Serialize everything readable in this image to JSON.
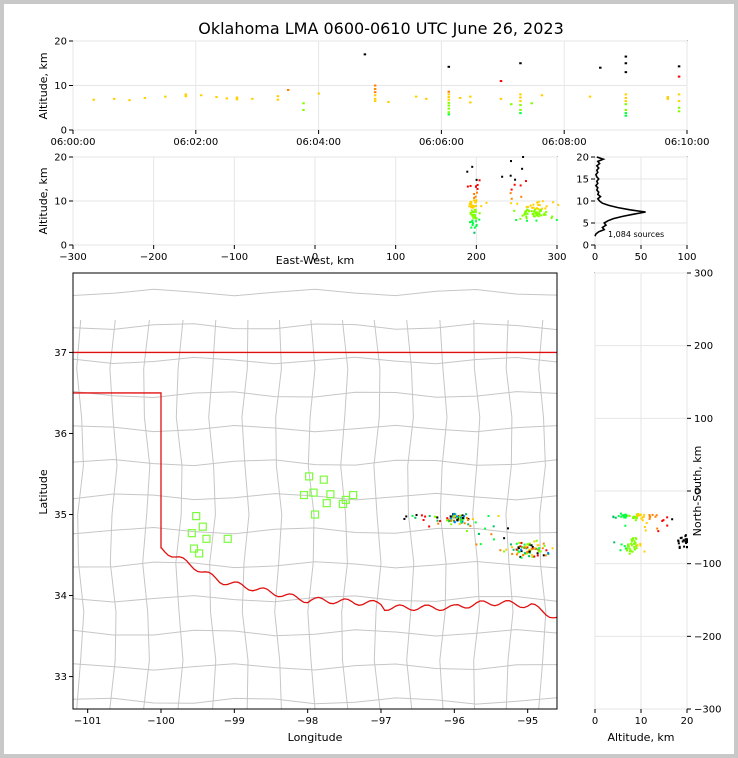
{
  "chart_data": {
    "type": "scatter",
    "title": "Oklahoma LMA 0600-0610 UTC June 26, 2023",
    "panels": {
      "time_altitude": {
        "ylabel": "Altitude, km",
        "ylim": [
          0,
          20
        ],
        "yticks": [
          "0",
          "10",
          "20"
        ],
        "xticks": [
          "06:00:00",
          "06:02:00",
          "06:04:00",
          "06:06:00",
          "06:08:00",
          "06:10:00"
        ],
        "xlim_seconds": [
          0,
          600
        ],
        "columns": [
          {
            "t": 20,
            "alts": [
              6.8
            ]
          },
          {
            "t": 40,
            "alts": [
              7.0
            ]
          },
          {
            "t": 55,
            "alts": [
              6.7
            ]
          },
          {
            "t": 70,
            "alts": [
              7.2
            ]
          },
          {
            "t": 90,
            "alts": [
              7.5
            ]
          },
          {
            "t": 110,
            "alts": [
              8.0,
              7.6
            ]
          },
          {
            "t": 125,
            "alts": [
              7.8
            ]
          },
          {
            "t": 140,
            "alts": [
              7.4
            ]
          },
          {
            "t": 150,
            "alts": [
              7.1
            ]
          },
          {
            "t": 160,
            "alts": [
              7.3,
              6.9
            ]
          },
          {
            "t": 175,
            "alts": [
              7.0
            ]
          },
          {
            "t": 200,
            "alts": [
              7.6,
              6.8
            ]
          },
          {
            "t": 210,
            "alts": [
              9.0
            ]
          },
          {
            "t": 225,
            "alts": [
              6.0,
              4.5
            ]
          },
          {
            "t": 240,
            "alts": [
              8.2
            ]
          },
          {
            "t": 285,
            "alts": [
              17.0
            ]
          },
          {
            "t": 295,
            "alts": [
              10.0,
              9.2,
              8.5,
              7.8,
              7.0,
              6.5
            ]
          },
          {
            "t": 308,
            "alts": [
              6.3
            ]
          },
          {
            "t": 335,
            "alts": [
              7.5
            ]
          },
          {
            "t": 345,
            "alts": [
              7.0
            ]
          },
          {
            "t": 367,
            "alts": [
              14.2,
              8.6,
              8.0,
              7.4,
              6.8,
              6.1,
              5.5,
              4.8,
              4.0,
              3.5
            ]
          },
          {
            "t": 378,
            "alts": [
              7.2
            ]
          },
          {
            "t": 388,
            "alts": [
              7.5,
              6.2
            ]
          },
          {
            "t": 418,
            "alts": [
              11.0,
              7.0
            ]
          },
          {
            "t": 428,
            "alts": [
              5.8
            ]
          },
          {
            "t": 437,
            "alts": [
              15.0,
              8.0,
              7.3,
              6.5,
              5.6,
              4.5,
              3.8
            ]
          },
          {
            "t": 448,
            "alts": [
              6.0
            ]
          },
          {
            "t": 458,
            "alts": [
              7.8
            ]
          },
          {
            "t": 505,
            "alts": [
              7.5
            ]
          },
          {
            "t": 515,
            "alts": [
              14.0
            ]
          },
          {
            "t": 540,
            "alts": [
              16.5,
              15.0,
              13.0,
              8.0,
              7.2,
              6.5,
              5.8,
              4.5,
              3.8,
              3.2
            ]
          },
          {
            "t": 581,
            "alts": [
              7.4,
              7.0
            ]
          },
          {
            "t": 592,
            "alts": [
              14.3,
              12.0,
              8.0,
              6.5,
              5.0,
              4.2
            ]
          }
        ]
      },
      "ew_altitude": {
        "xlabel": "East-West, km",
        "ylabel": "Altitude, km",
        "xlim": [
          -300,
          300
        ],
        "ylim": [
          0,
          20
        ],
        "xticks": [
          "−300",
          "−200",
          "−100",
          "0",
          "100",
          "200",
          "300"
        ],
        "yticks": [
          "0",
          "10",
          "20"
        ],
        "clusters": [
          {
            "x": 197,
            "alt": 8.5,
            "sx": 4,
            "sy": 2.8,
            "n": 70
          },
          {
            "x": 272,
            "alt": 7.5,
            "sx": 12,
            "sy": 1.2,
            "n": 70
          },
          {
            "x": 250,
            "alt": 14,
            "sx": 8,
            "sy": 4,
            "n": 16
          }
        ]
      },
      "alt_histogram": {
        "xlim": [
          0,
          100
        ],
        "ylim": [
          0,
          20
        ],
        "xticks": [
          "0",
          "50",
          "100"
        ],
        "yticks": [
          "0",
          "5",
          "10",
          "15",
          "20"
        ],
        "label": "1,084 sources",
        "profile": [
          {
            "alt": 2.0,
            "count": 0
          },
          {
            "alt": 2.5,
            "count": 1
          },
          {
            "alt": 3.0,
            "count": 4
          },
          {
            "alt": 3.5,
            "count": 10
          },
          {
            "alt": 4.0,
            "count": 8
          },
          {
            "alt": 4.5,
            "count": 12
          },
          {
            "alt": 5.0,
            "count": 10
          },
          {
            "alt": 5.5,
            "count": 14
          },
          {
            "alt": 6.0,
            "count": 20
          },
          {
            "alt": 6.5,
            "count": 30
          },
          {
            "alt": 7.0,
            "count": 42
          },
          {
            "alt": 7.5,
            "count": 55
          },
          {
            "alt": 8.0,
            "count": 38
          },
          {
            "alt": 8.5,
            "count": 25
          },
          {
            "alt": 9.0,
            "count": 15
          },
          {
            "alt": 9.5,
            "count": 8
          },
          {
            "alt": 10.0,
            "count": 5
          },
          {
            "alt": 10.5,
            "count": 3
          },
          {
            "alt": 11.0,
            "count": 6
          },
          {
            "alt": 11.5,
            "count": 3
          },
          {
            "alt": 12.0,
            "count": 4
          },
          {
            "alt": 12.5,
            "count": 2
          },
          {
            "alt": 13.0,
            "count": 3
          },
          {
            "alt": 13.5,
            "count": 1
          },
          {
            "alt": 14.0,
            "count": 3
          },
          {
            "alt": 14.5,
            "count": 2
          },
          {
            "alt": 15.0,
            "count": 4
          },
          {
            "alt": 15.5,
            "count": 2
          },
          {
            "alt": 16.0,
            "count": 1
          },
          {
            "alt": 16.5,
            "count": 3
          },
          {
            "alt": 17.0,
            "count": 2
          },
          {
            "alt": 17.5,
            "count": 4
          },
          {
            "alt": 18.0,
            "count": 2
          },
          {
            "alt": 18.5,
            "count": 5
          },
          {
            "alt": 19.0,
            "count": 3
          },
          {
            "alt": 19.5,
            "count": 9
          },
          {
            "alt": 20.0,
            "count": 2
          }
        ]
      },
      "map": {
        "xlabel": "Longitude",
        "ylabel": "Latitude",
        "xlim": [
          -101.2,
          -94.6
        ],
        "ylim": [
          32.6,
          37.98
        ],
        "xticks": [
          "−101",
          "−100",
          "−99",
          "−98",
          "−97",
          "−96",
          "−95"
        ],
        "yticks": [
          "33",
          "34",
          "35",
          "36",
          "37"
        ],
        "stations": [
          [
            -99.58,
            34.77
          ],
          [
            -99.52,
            34.98
          ],
          [
            -99.43,
            34.85
          ],
          [
            -99.38,
            34.7
          ],
          [
            -99.09,
            34.7
          ],
          [
            -99.55,
            34.58
          ],
          [
            -99.48,
            34.52
          ],
          [
            -97.98,
            35.47
          ],
          [
            -97.78,
            35.43
          ],
          [
            -98.05,
            35.24
          ],
          [
            -97.92,
            35.27
          ],
          [
            -97.69,
            35.25
          ],
          [
            -97.74,
            35.14
          ],
          [
            -97.48,
            35.18
          ],
          [
            -97.52,
            35.13
          ],
          [
            -97.38,
            35.24
          ],
          [
            -97.9,
            35.0
          ]
        ],
        "clusters": [
          {
            "lon": -95.95,
            "lat": 34.95,
            "slon": 0.08,
            "slat": 0.03,
            "n": 60
          },
          {
            "lon": -95.0,
            "lat": 34.58,
            "slon": 0.12,
            "slat": 0.05,
            "n": 80
          },
          {
            "lon": -96.3,
            "lat": 34.95,
            "slon": 0.3,
            "slat": 0.05,
            "n": 20
          },
          {
            "lon": -95.55,
            "lat": 34.78,
            "slon": 0.2,
            "slat": 0.1,
            "n": 14
          }
        ]
      },
      "ns_altitude": {
        "xlabel": "Altitude, km",
        "ylabel": "North-South, km",
        "xlim": [
          0,
          20
        ],
        "ylim": [
          -300,
          300
        ],
        "xticks": [
          "0",
          "10",
          "20"
        ],
        "yticks": [
          "−300",
          "−200",
          "−100",
          "0",
          "100",
          "200",
          "300"
        ],
        "clusters": [
          {
            "alt": 8,
            "y": -35,
            "sx": 2.5,
            "sy": 3,
            "n": 40
          },
          {
            "alt": 8,
            "y": -75,
            "sx": 1.2,
            "sy": 5,
            "n": 40
          },
          {
            "alt": 13,
            "y": -40,
            "sx": 3,
            "sy": 12,
            "n": 15
          },
          {
            "alt": 19,
            "y": -70,
            "sx": 1,
            "sy": 5,
            "n": 20
          }
        ]
      }
    }
  }
}
